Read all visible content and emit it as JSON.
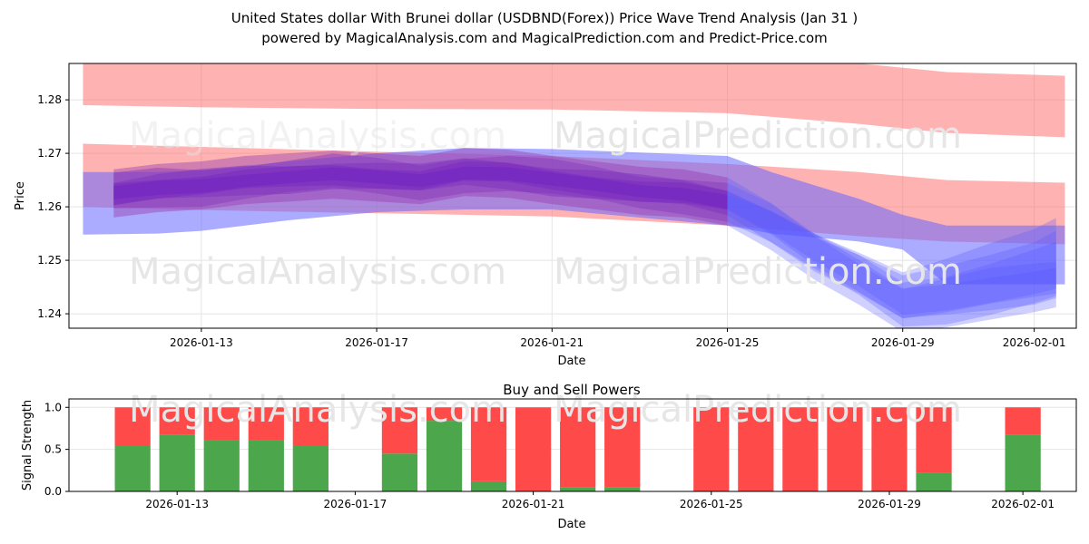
{
  "title_line1": "United States dollar With Brunei dollar (USDBND(Forex)) Price Wave Trend Analysis (Jan 31 )",
  "title_line2": "powered by MagicalAnalysis.com and MagicalPrediction.com and Predict-Price.com",
  "watermarks": [
    "MagicalAnalysis.com",
    "MagicalPrediction.com"
  ],
  "colors": {
    "red_band": "#ff0000",
    "blue_band": "#0000ff",
    "purple": "#7b2fbf",
    "buy": "#4ca64c",
    "sell": "#ff4a4a"
  },
  "chart_data": [
    {
      "type": "area",
      "title": "",
      "xlabel": "Date",
      "ylabel": "Price",
      "x_reference_date": "2026-01-13",
      "xlim_days": [
        -3.02,
        19.96
      ],
      "ylim": [
        1.2373,
        1.2868
      ],
      "yticks": [
        1.24,
        1.25,
        1.26,
        1.27,
        1.28
      ],
      "ytick_labels": [
        "1.24",
        "1.25",
        "1.26",
        "1.27",
        "1.28"
      ],
      "xticks_days": [
        0,
        4,
        8,
        12,
        16,
        19
      ],
      "xtick_labels": [
        "2026-01-13",
        "2026-01-17",
        "2026-01-21",
        "2026-01-25",
        "2026-01-29",
        "2026-02-01"
      ],
      "grid": true,
      "bands": [
        {
          "name": "upper-red-band",
          "color": "red",
          "x": [
            -2.7,
            0,
            4,
            8,
            12,
            15,
            17,
            19.7
          ],
          "upper": [
            1.2875,
            1.2875,
            1.2875,
            1.2875,
            1.2875,
            1.2868,
            1.2852,
            1.2845
          ],
          "lower": [
            1.279,
            1.2786,
            1.2783,
            1.2782,
            1.2775,
            1.2755,
            1.2738,
            1.273
          ]
        },
        {
          "name": "middle-red-band",
          "color": "red",
          "x": [
            -2.7,
            0,
            4,
            8,
            12,
            15,
            17,
            19.7
          ],
          "upper": [
            1.2718,
            1.2712,
            1.2703,
            1.2695,
            1.268,
            1.2665,
            1.265,
            1.2645
          ],
          "lower": [
            1.26,
            1.2594,
            1.2588,
            1.2582,
            1.2565,
            1.2545,
            1.2535,
            1.253
          ]
        },
        {
          "name": "wide-blue-band",
          "color": "blue",
          "x": [
            -2.7,
            -1,
            0,
            2,
            4,
            6,
            8,
            12,
            13,
            15,
            16,
            17,
            19.7
          ],
          "upper": [
            1.2665,
            1.2665,
            1.2668,
            1.2685,
            1.27,
            1.271,
            1.2708,
            1.2695,
            1.2665,
            1.2615,
            1.2585,
            1.2565,
            1.2565
          ],
          "lower": [
            1.2548,
            1.255,
            1.2555,
            1.2575,
            1.259,
            1.2595,
            1.2595,
            1.2565,
            1.255,
            1.2535,
            1.252,
            1.2455,
            1.2455
          ]
        }
      ],
      "wave_center": {
        "x": [
          -2,
          -1,
          0,
          1,
          2,
          3,
          4,
          5,
          6,
          7,
          8,
          9,
          10,
          11,
          12,
          13,
          14,
          15,
          16,
          17,
          18,
          19,
          19.5
        ],
        "y": [
          1.2625,
          1.2635,
          1.264,
          1.265,
          1.2655,
          1.266,
          1.2655,
          1.265,
          1.2665,
          1.2662,
          1.265,
          1.264,
          1.263,
          1.2625,
          1.261,
          1.257,
          1.252,
          1.248,
          1.2435,
          1.245,
          1.247,
          1.249,
          1.2505
        ]
      }
    },
    {
      "type": "bar",
      "title": "Buy and Sell Powers",
      "xlabel": "Date",
      "ylabel": "Signal Strength",
      "x_reference_date": "2026-01-13",
      "xlim_days": [
        -2.43,
        20.2
      ],
      "ylim": [
        0,
        1.1
      ],
      "yticks": [
        0,
        0.5,
        1.0
      ],
      "ytick_labels": [
        "0.0",
        "0.5",
        "1.0"
      ],
      "xticks_days": [
        0,
        4,
        8,
        12,
        16,
        19
      ],
      "xtick_labels": [
        "2026-01-13",
        "2026-01-17",
        "2026-01-21",
        "2026-01-25",
        "2026-01-29",
        "2026-02-01"
      ],
      "categories": [
        "2026-01-12",
        "2026-01-13",
        "2026-01-14",
        "2026-01-15",
        "2026-01-16",
        "2026-01-18",
        "2026-01-19",
        "2026-01-20",
        "2026-01-21",
        "2026-01-22",
        "2026-01-23",
        "2026-01-25",
        "2026-01-26",
        "2026-01-27",
        "2026-01-28",
        "2026-01-29",
        "2026-01-30",
        "2026-02-01"
      ],
      "day_offsets": [
        -1,
        0,
        1,
        2,
        3,
        5,
        6,
        7,
        8,
        9,
        10,
        12,
        13,
        14,
        15,
        16,
        17,
        19
      ],
      "series": [
        {
          "name": "Buy",
          "values": [
            0.55,
            0.67,
            0.61,
            0.61,
            0.55,
            0.45,
            0.84,
            0.12,
            0.0,
            0.05,
            0.05,
            0.0,
            0.0,
            0.0,
            0.0,
            0.0,
            0.22,
            0.67
          ]
        },
        {
          "name": "Sell",
          "values": [
            0.45,
            0.33,
            0.39,
            0.39,
            0.45,
            0.55,
            0.16,
            0.88,
            1.0,
            0.95,
            0.95,
            1.0,
            1.0,
            1.0,
            1.0,
            1.0,
            0.78,
            0.33
          ]
        }
      ]
    }
  ]
}
